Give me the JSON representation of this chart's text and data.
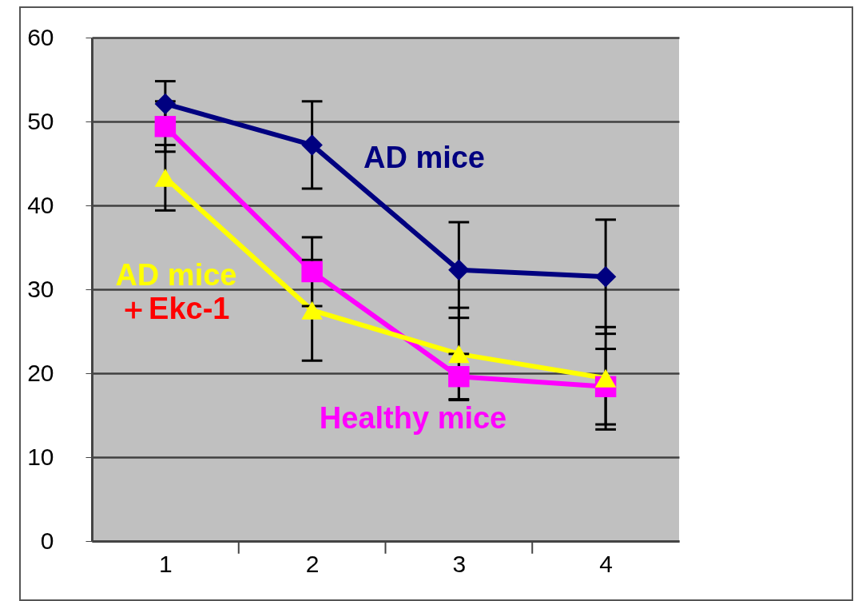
{
  "chart_data": {
    "type": "line",
    "categories": [
      "1",
      "2",
      "3",
      "4"
    ],
    "series": [
      {
        "name": "AD mice",
        "color": "#000080",
        "marker": "diamond",
        "values": [
          52.1,
          47.2,
          32.3,
          31.5
        ],
        "errors": [
          2.7,
          5.2,
          5.7,
          6.8
        ]
      },
      {
        "name": "Healthy mice",
        "color": "#ff00ff",
        "marker": "square",
        "values": [
          49.4,
          32.1,
          19.6,
          18.4
        ],
        "errors": [
          3.0,
          4.1,
          2.7,
          4.5
        ]
      },
      {
        "name": "AD mice",
        "color": "#ffff00",
        "marker": "triangle",
        "values": [
          43.3,
          27.5,
          22.3,
          19.4
        ],
        "errors": [
          3.9,
          6.0,
          5.5,
          6.1
        ]
      }
    ],
    "annotations": [
      "＋Ekc-1"
    ],
    "ylim": [
      0,
      60
    ],
    "yticks": [
      0,
      10,
      20,
      30,
      40,
      50,
      60
    ],
    "grid": "y",
    "legend": false
  }
}
